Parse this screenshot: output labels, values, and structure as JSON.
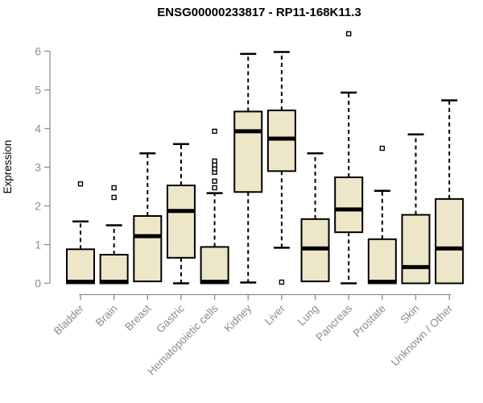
{
  "page": {
    "background": "#ffffff"
  },
  "chart_data": {
    "type": "boxplot",
    "title": "ENSG00000233817 - RP11-168K11.3",
    "ylabel": "Expression",
    "xlabel": "",
    "grid": false,
    "legend": false,
    "yticks": [
      0,
      1,
      2,
      3,
      4,
      5,
      6
    ],
    "ylim": [
      -0.15,
      6.55
    ],
    "categories": [
      "Bladder",
      "Brain",
      "Breast",
      "Gastric",
      "Hematopoietic cells",
      "Kidney",
      "Liver",
      "Lung",
      "Pancreas",
      "Prostate",
      "Skin",
      "Unknown / Other"
    ],
    "series": [
      {
        "category": "Bladder",
        "min": 0,
        "q1": 0,
        "median": 0.04,
        "q3": 0.88,
        "max": 1.6,
        "outliers": [
          2.57
        ]
      },
      {
        "category": "Brain",
        "min": 0,
        "q1": 0,
        "median": 0.04,
        "q3": 0.74,
        "max": 1.5,
        "outliers": [
          2.22,
          2.47
        ]
      },
      {
        "category": "Breast",
        "min": 0.05,
        "q1": 0.05,
        "median": 1.22,
        "q3": 1.74,
        "max": 3.36,
        "outliers": []
      },
      {
        "category": "Gastric",
        "min": 0,
        "q1": 0.66,
        "median": 1.87,
        "q3": 2.53,
        "max": 3.6,
        "outliers": []
      },
      {
        "category": "Hematopoietic cells",
        "min": 0,
        "q1": 0,
        "median": 0.04,
        "q3": 0.94,
        "max": 2.33,
        "outliers": [
          2.47,
          2.64,
          2.87,
          2.96,
          3.06,
          3.16,
          3.93
        ]
      },
      {
        "category": "Kidney",
        "min": 0.02,
        "q1": 2.36,
        "median": 3.93,
        "q3": 4.44,
        "max": 5.93,
        "outliers": []
      },
      {
        "category": "Liver",
        "min": 0.92,
        "q1": 2.9,
        "median": 3.74,
        "q3": 4.47,
        "max": 5.98,
        "outliers": [
          0.03
        ]
      },
      {
        "category": "Lung",
        "min": 0.05,
        "q1": 0.05,
        "median": 0.9,
        "q3": 1.66,
        "max": 3.36,
        "outliers": []
      },
      {
        "category": "Pancreas",
        "min": 0,
        "q1": 1.32,
        "median": 1.91,
        "q3": 2.74,
        "max": 4.93,
        "outliers": [
          6.45
        ]
      },
      {
        "category": "Prostate",
        "min": 0,
        "q1": 0,
        "median": 0.04,
        "q3": 1.14,
        "max": 2.39,
        "outliers": [
          3.49
        ]
      },
      {
        "category": "Skin",
        "min": 0,
        "q1": 0,
        "median": 0.42,
        "q3": 1.77,
        "max": 3.85,
        "outliers": []
      },
      {
        "category": "Unknown / Other",
        "min": 0,
        "q1": 0,
        "median": 0.9,
        "q3": 2.18,
        "max": 4.73,
        "outliers": []
      }
    ],
    "styles": {
      "box_fill": "#ede6c9",
      "box_border": "#000000",
      "median_color": "#000000",
      "whisker_color": "#000000",
      "outlier_fill": "#ffffff",
      "outlier_border": "#000000",
      "axis_color": "#8f8f8f",
      "tick_label_color": "#8c8c8c",
      "title_color": "#000000",
      "background": "#ffffff"
    }
  }
}
